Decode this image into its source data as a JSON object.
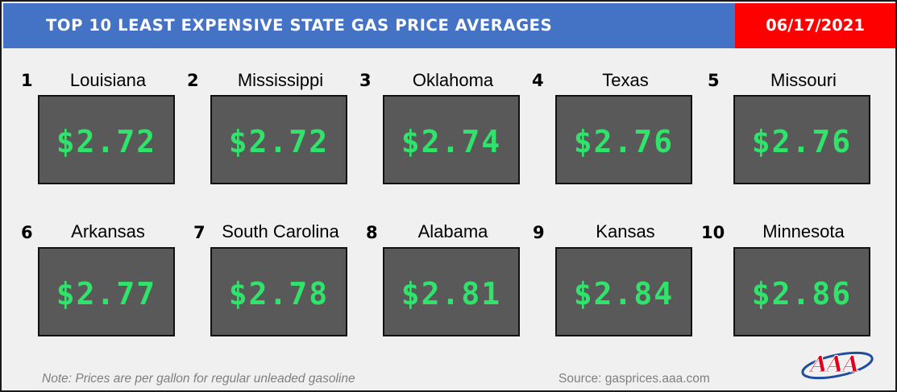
{
  "header": {
    "title": "TOP 10 LEAST EXPENSIVE STATE GAS PRICE AVERAGES",
    "date": "06/17/2021"
  },
  "colors": {
    "header_blue": "#4472c4",
    "date_red": "#ff0000",
    "price_green": "#2fe36b",
    "box_gray": "#595959"
  },
  "states": [
    {
      "rank": "1",
      "name": "Louisiana",
      "price": "$2.72"
    },
    {
      "rank": "2",
      "name": "Mississippi",
      "price": "$2.72"
    },
    {
      "rank": "3",
      "name": "Oklahoma",
      "price": "$2.74"
    },
    {
      "rank": "4",
      "name": "Texas",
      "price": "$2.76"
    },
    {
      "rank": "5",
      "name": "Missouri",
      "price": "$2.76"
    },
    {
      "rank": "6",
      "name": "Arkansas",
      "price": "$2.77"
    },
    {
      "rank": "7",
      "name": "South Carolina",
      "price": "$2.78"
    },
    {
      "rank": "8",
      "name": "Alabama",
      "price": "$2.81"
    },
    {
      "rank": "9",
      "name": "Kansas",
      "price": "$2.84"
    },
    {
      "rank": "10",
      "name": "Minnesota",
      "price": "$2.86"
    }
  ],
  "footer": {
    "note": "Note: Prices are per gallon for regular unleaded gasoline",
    "source": "Source: gasprices.aaa.com"
  },
  "logo": {
    "text": "AAA",
    "icon": "aaa-logo-icon"
  }
}
